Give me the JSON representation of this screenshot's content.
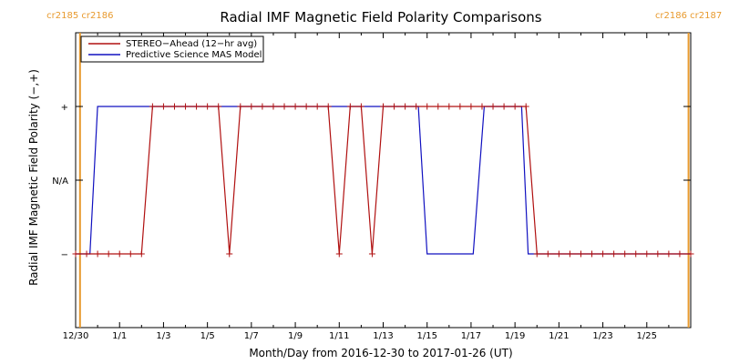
{
  "chart_data": {
    "type": "line",
    "title": "Radial IMF Magnetic Field Polarity Comparisons",
    "xlabel": "Month/Day from 2016-12-30 to 2017-01-26 (UT)",
    "ylabel": "Radial IMF Magnetic Field Polarity (−,+)",
    "xlim": [
      0,
      28
    ],
    "ylim": [
      -2,
      2
    ],
    "x_ticks": [
      {
        "x": 0,
        "label": "12/30"
      },
      {
        "x": 2,
        "label": "1/1"
      },
      {
        "x": 4,
        "label": "1/3"
      },
      {
        "x": 6,
        "label": "1/5"
      },
      {
        "x": 8,
        "label": "1/7"
      },
      {
        "x": 10,
        "label": "1/9"
      },
      {
        "x": 12,
        "label": "1/11"
      },
      {
        "x": 14,
        "label": "1/13"
      },
      {
        "x": 16,
        "label": "1/15"
      },
      {
        "x": 18,
        "label": "1/17"
      },
      {
        "x": 20,
        "label": "1/19"
      },
      {
        "x": 22,
        "label": "1/21"
      },
      {
        "x": 24,
        "label": "1/23"
      },
      {
        "x": 26,
        "label": "1/25"
      }
    ],
    "y_ticks": [
      {
        "y": 1,
        "label": "+"
      },
      {
        "y": 0,
        "label": "N/A"
      },
      {
        "y": -1,
        "label": "−"
      }
    ],
    "carrington_markers": [
      {
        "x": 0.2,
        "left": "cr2185",
        "right": "cr2186"
      },
      {
        "x": 27.9,
        "left": "cr2186",
        "right": "cr2187"
      }
    ],
    "series": [
      {
        "name": "STEREO−Ahead (12−hr avg)",
        "color": "#b01010",
        "marker": "plus",
        "points": [
          [
            0,
            -1
          ],
          [
            0.5,
            -1
          ],
          [
            1,
            -1
          ],
          [
            1.5,
            -1
          ],
          [
            2,
            -1
          ],
          [
            2.5,
            -1
          ],
          [
            3,
            -1
          ],
          [
            3.5,
            1
          ],
          [
            4,
            1
          ],
          [
            4.5,
            1
          ],
          [
            5,
            1
          ],
          [
            5.5,
            1
          ],
          [
            6,
            1
          ],
          [
            6.5,
            1
          ],
          [
            7.0,
            -1
          ],
          [
            7.5,
            1
          ],
          [
            8,
            1
          ],
          [
            8.5,
            1
          ],
          [
            9,
            1
          ],
          [
            9.5,
            1
          ],
          [
            10,
            1
          ],
          [
            10.5,
            1
          ],
          [
            11,
            1
          ],
          [
            11.5,
            1
          ],
          [
            12,
            -1
          ],
          [
            12.5,
            1
          ],
          [
            13,
            1
          ],
          [
            13.5,
            -1
          ],
          [
            14,
            1
          ],
          [
            14.5,
            1
          ],
          [
            15,
            1
          ],
          [
            15.5,
            1
          ],
          [
            16,
            1
          ],
          [
            16.5,
            1
          ],
          [
            17,
            1
          ],
          [
            17.5,
            1
          ],
          [
            18,
            1
          ],
          [
            18.5,
            1
          ],
          [
            19,
            1
          ],
          [
            19.5,
            1
          ],
          [
            20,
            1
          ],
          [
            20.5,
            1
          ],
          [
            21,
            -1
          ],
          [
            21.5,
            -1
          ],
          [
            22,
            -1
          ],
          [
            22.5,
            -1
          ],
          [
            23,
            -1
          ],
          [
            23.5,
            -1
          ],
          [
            24,
            -1
          ],
          [
            24.5,
            -1
          ],
          [
            25,
            -1
          ],
          [
            25.5,
            -1
          ],
          [
            26,
            -1
          ],
          [
            26.5,
            -1
          ],
          [
            27,
            -1
          ],
          [
            27.5,
            -1
          ],
          [
            28,
            -1
          ]
        ]
      },
      {
        "name": "Predictive Science MAS Model",
        "color": "#1010c0",
        "marker": "none",
        "points": [
          [
            0,
            -1
          ],
          [
            0.65,
            -1
          ],
          [
            1.0,
            1
          ],
          [
            15.6,
            1
          ],
          [
            16.0,
            -1
          ],
          [
            18.1,
            -1
          ],
          [
            18.6,
            1
          ],
          [
            20.3,
            1
          ],
          [
            20.6,
            -1
          ],
          [
            28,
            -1
          ]
        ]
      }
    ]
  }
}
